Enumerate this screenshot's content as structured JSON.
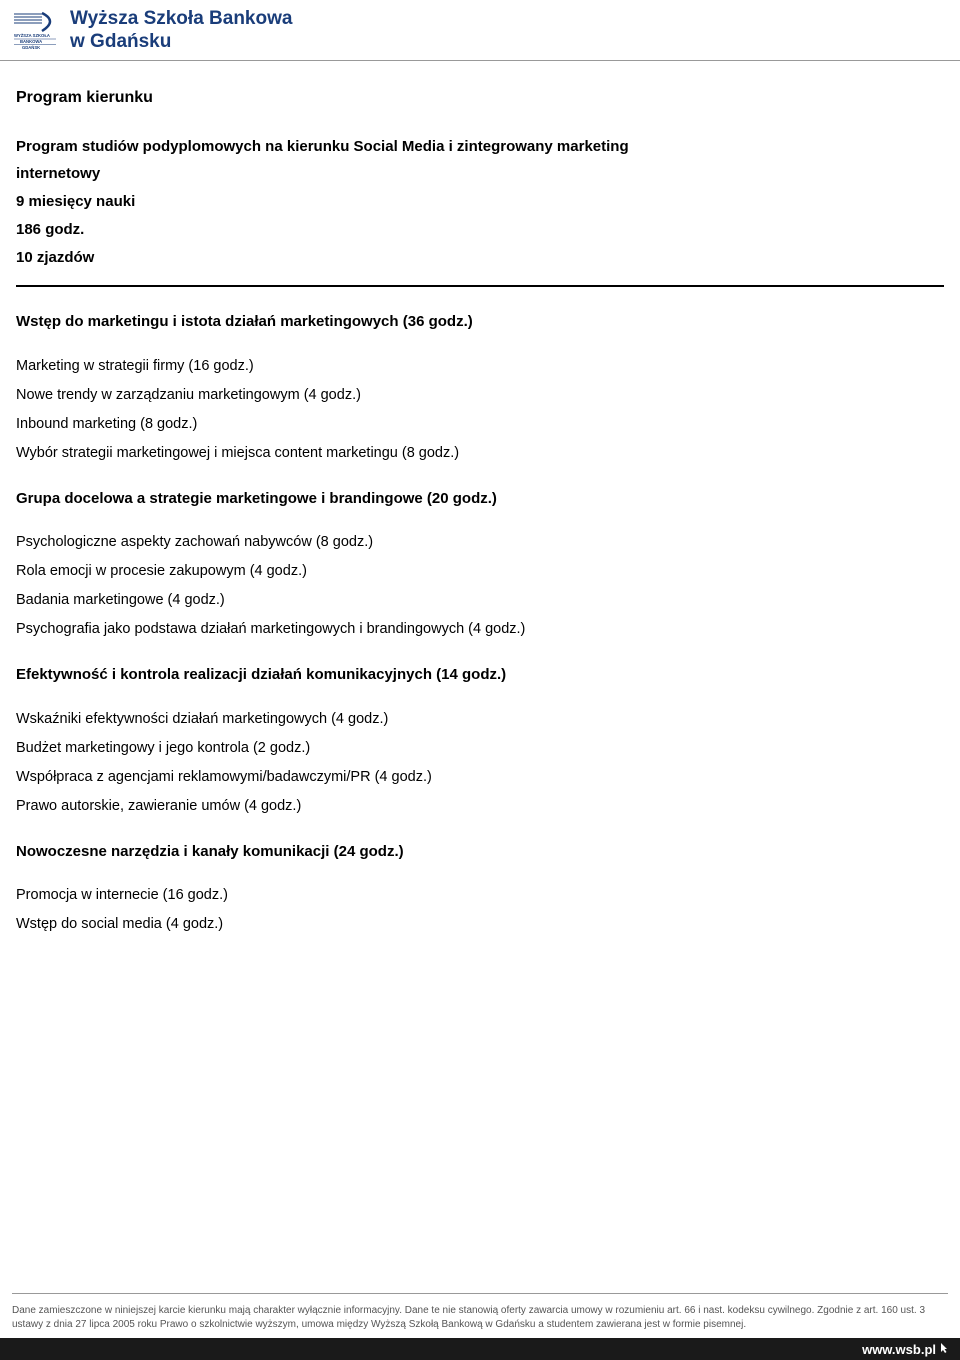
{
  "header": {
    "school_line1": "Wyższa Szkoła Bankowa",
    "school_line2": "w Gdańsku",
    "logo_caption_line1": "WYŻSZA SZKOŁA",
    "logo_caption_line2": "BANKOWA",
    "logo_caption_line3": "GDAŃSK",
    "accent_color": "#1a3d7a"
  },
  "page": {
    "title": "Program kierunku",
    "intro": {
      "line1": "Program studiów podyplomowych na kierunku Social Media i zintegrowany marketing",
      "line2": "internetowy",
      "duration": "9 miesięcy nauki",
      "hours": "186 godz.",
      "meetings": "10 zjazdów"
    }
  },
  "sections": [
    {
      "heading": "Wstęp do marketingu i istota działań marketingowych (36 godz.)",
      "items": [
        "Marketing w strategii firmy (16 godz.)",
        "Nowe trendy w zarządzaniu marketingowym (4 godz.)",
        "Inbound marketing (8 godz.)",
        "Wybór strategii marketingowej i miejsca content marketingu (8 godz.)"
      ]
    },
    {
      "heading": "Grupa docelowa a strategie marketingowe i brandingowe  (20 godz.)",
      "items": [
        "Psychologiczne aspekty zachowań nabywców (8 godz.)",
        "Rola emocji w procesie zakupowym (4 godz.)",
        "Badania marketingowe (4 godz.)",
        "Psychografia jako podstawa działań marketingowych i brandingowych (4 godz.)"
      ]
    },
    {
      "heading": "Efektywność i kontrola realizacji działań komunikacyjnych (14 godz.)",
      "items": [
        "Wskaźniki efektywności działań marketingowych (4 godz.)",
        "Budżet marketingowy i jego kontrola (2 godz.)",
        "Współpraca z agencjami reklamowymi/badawczymi/PR (4 godz.)",
        "Prawo autorskie, zawieranie umów (4 godz.)"
      ]
    },
    {
      "heading": "Nowoczesne narzędzia i kanały komunikacji (24 godz.)",
      "items": [
        "Promocja w internecie (16 godz.)",
        "Wstęp do social media (4 godz.)"
      ]
    }
  ],
  "footer": {
    "disclaimer": "Dane zamieszczone w niniejszej karcie kierunku mają charakter wyłącznie informacyjny. Dane te nie stanowią oferty zawarcia umowy w rozumieniu art. 66 i nast. kodeksu cywilnego. Zgodnie z art. 160 ust. 3 ustawy z dnia 27 lipca 2005 roku Prawo o szkolnictwie wyższym, umowa między Wyższą Szkołą Bankową w Gdańsku a studentem zawierana jest w formie pisemnej.",
    "site_url": "www.wsb.pl"
  }
}
